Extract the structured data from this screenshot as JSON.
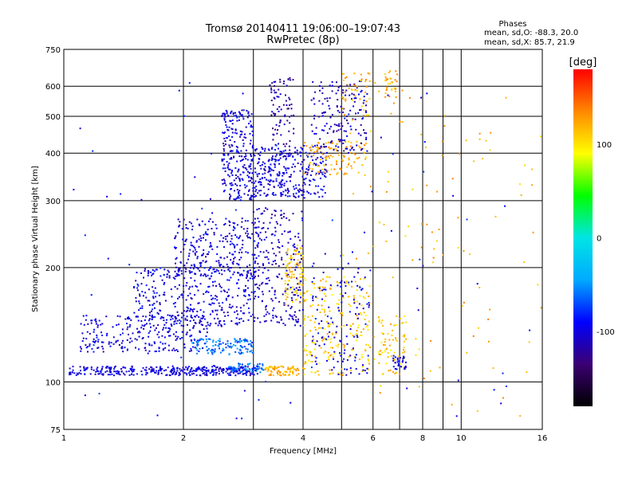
{
  "chart_data": {
    "type": "scatter",
    "title": "Tromsø 20140411 19:06:00–19:07:43",
    "subtitle": "RwPretec (8p)",
    "xlabel": "Frequency [MHz]",
    "ylabel": "Stationary phase Virtual Height [km]",
    "x_scale": "log",
    "y_scale": "log",
    "xlim": [
      1,
      16
    ],
    "ylim": [
      75,
      750
    ],
    "x_ticks": [
      1,
      2,
      4,
      6,
      8,
      10,
      16
    ],
    "x_tick_labels": [
      "1",
      "2",
      "4",
      "6",
      "8",
      "10",
      "16"
    ],
    "x_gridlines": [
      1,
      2,
      3,
      4,
      5,
      6,
      7,
      8,
      9,
      10,
      16
    ],
    "y_ticks": [
      75,
      100,
      200,
      300,
      400,
      500,
      600,
      750
    ],
    "y_tick_labels": [
      "75",
      "100",
      "200",
      "300",
      "400",
      "500",
      "600",
      "750"
    ],
    "grid": true,
    "phase_stats": {
      "heading": "Phases",
      "line_o": "mean, sd,O: -88.3, 20.0",
      "line_x": "mean, sd,X:  85.7, 21.9"
    },
    "colorbar": {
      "label": "[deg]",
      "range": [
        -180,
        180
      ],
      "ticks": [
        -100,
        0,
        100
      ],
      "tick_labels": [
        "-100",
        "0",
        "100"
      ],
      "colors": [
        "#000000",
        "#3b0073",
        "#0000ff",
        "#00aaff",
        "#00e5e5",
        "#00ff00",
        "#ffff00",
        "#ff8800",
        "#ff0000"
      ]
    },
    "clusters": [
      {
        "name": "",
        "phase": -100,
        "x0": 1.03,
        "x1": 2.2,
        "y0": 104,
        "y1": 110,
        "n": 220
      },
      {
        "name": "",
        "phase": -100,
        "x0": 2.2,
        "x1": 3.1,
        "y0": 104,
        "y1": 110,
        "n": 120
      },
      {
        "name": "",
        "phase": -60,
        "x0": 2.6,
        "x1": 3.2,
        "y0": 106,
        "y1": 112,
        "n": 60
      },
      {
        "name": "",
        "phase": 120,
        "x0": 3.2,
        "x1": 3.9,
        "y0": 104,
        "y1": 110,
        "n": 80
      },
      {
        "name": "",
        "phase": -100,
        "x0": 1.1,
        "x1": 2.3,
        "y0": 120,
        "y1": 150,
        "n": 260
      },
      {
        "name": "",
        "phase": -60,
        "x0": 2.1,
        "x1": 3.0,
        "y0": 118,
        "y1": 130,
        "n": 120
      },
      {
        "name": "",
        "phase": -100,
        "x0": 1.5,
        "x1": 3.0,
        "y0": 140,
        "y1": 200,
        "n": 340
      },
      {
        "name": "",
        "phase": -100,
        "x0": 1.9,
        "x1": 3.1,
        "y0": 190,
        "y1": 270,
        "n": 260
      },
      {
        "name": "",
        "phase": -110,
        "x0": 3.0,
        "x1": 4.0,
        "y0": 140,
        "y1": 290,
        "n": 240
      },
      {
        "name": "",
        "phase": 110,
        "x0": 3.6,
        "x1": 4.0,
        "y0": 160,
        "y1": 230,
        "n": 90
      },
      {
        "name": "",
        "phase": -100,
        "x0": 2.5,
        "x1": 3.0,
        "y0": 300,
        "y1": 520,
        "n": 260
      },
      {
        "name": "",
        "phase": -100,
        "x0": 3.0,
        "x1": 4.6,
        "y0": 305,
        "y1": 420,
        "n": 320
      },
      {
        "name": "",
        "phase": -120,
        "x0": 3.3,
        "x1": 3.8,
        "y0": 420,
        "y1": 640,
        "n": 80
      },
      {
        "name": "",
        "phase": 120,
        "x0": 4.0,
        "x1": 5.8,
        "y0": 350,
        "y1": 430,
        "n": 110
      },
      {
        "name": "",
        "phase": -110,
        "x0": 4.2,
        "x1": 5.8,
        "y0": 400,
        "y1": 620,
        "n": 160
      },
      {
        "name": "",
        "phase": 120,
        "x0": 5.0,
        "x1": 5.9,
        "y0": 500,
        "y1": 650,
        "n": 40
      },
      {
        "name": "",
        "phase": 110,
        "x0": 4.0,
        "x1": 5.9,
        "y0": 104,
        "y1": 190,
        "n": 220
      },
      {
        "name": "",
        "phase": -100,
        "x0": 4.2,
        "x1": 5.9,
        "y0": 104,
        "y1": 200,
        "n": 120
      },
      {
        "name": "",
        "phase": 110,
        "x0": 6.2,
        "x1": 7.3,
        "y0": 104,
        "y1": 150,
        "n": 70
      },
      {
        "name": "",
        "phase": 120,
        "x0": 6.4,
        "x1": 6.9,
        "y0": 560,
        "y1": 660,
        "n": 30
      },
      {
        "name": "",
        "phase": -100,
        "x0": 6.7,
        "x1": 7.3,
        "y0": 108,
        "y1": 118,
        "n": 30
      },
      {
        "name": "",
        "phase": 120,
        "x0": 5.0,
        "x1": 16.0,
        "y0": 80,
        "y1": 640,
        "n": 110
      },
      {
        "name": "",
        "phase": -90,
        "x0": 1.05,
        "x1": 16.0,
        "y0": 80,
        "y1": 620,
        "n": 90
      }
    ]
  }
}
